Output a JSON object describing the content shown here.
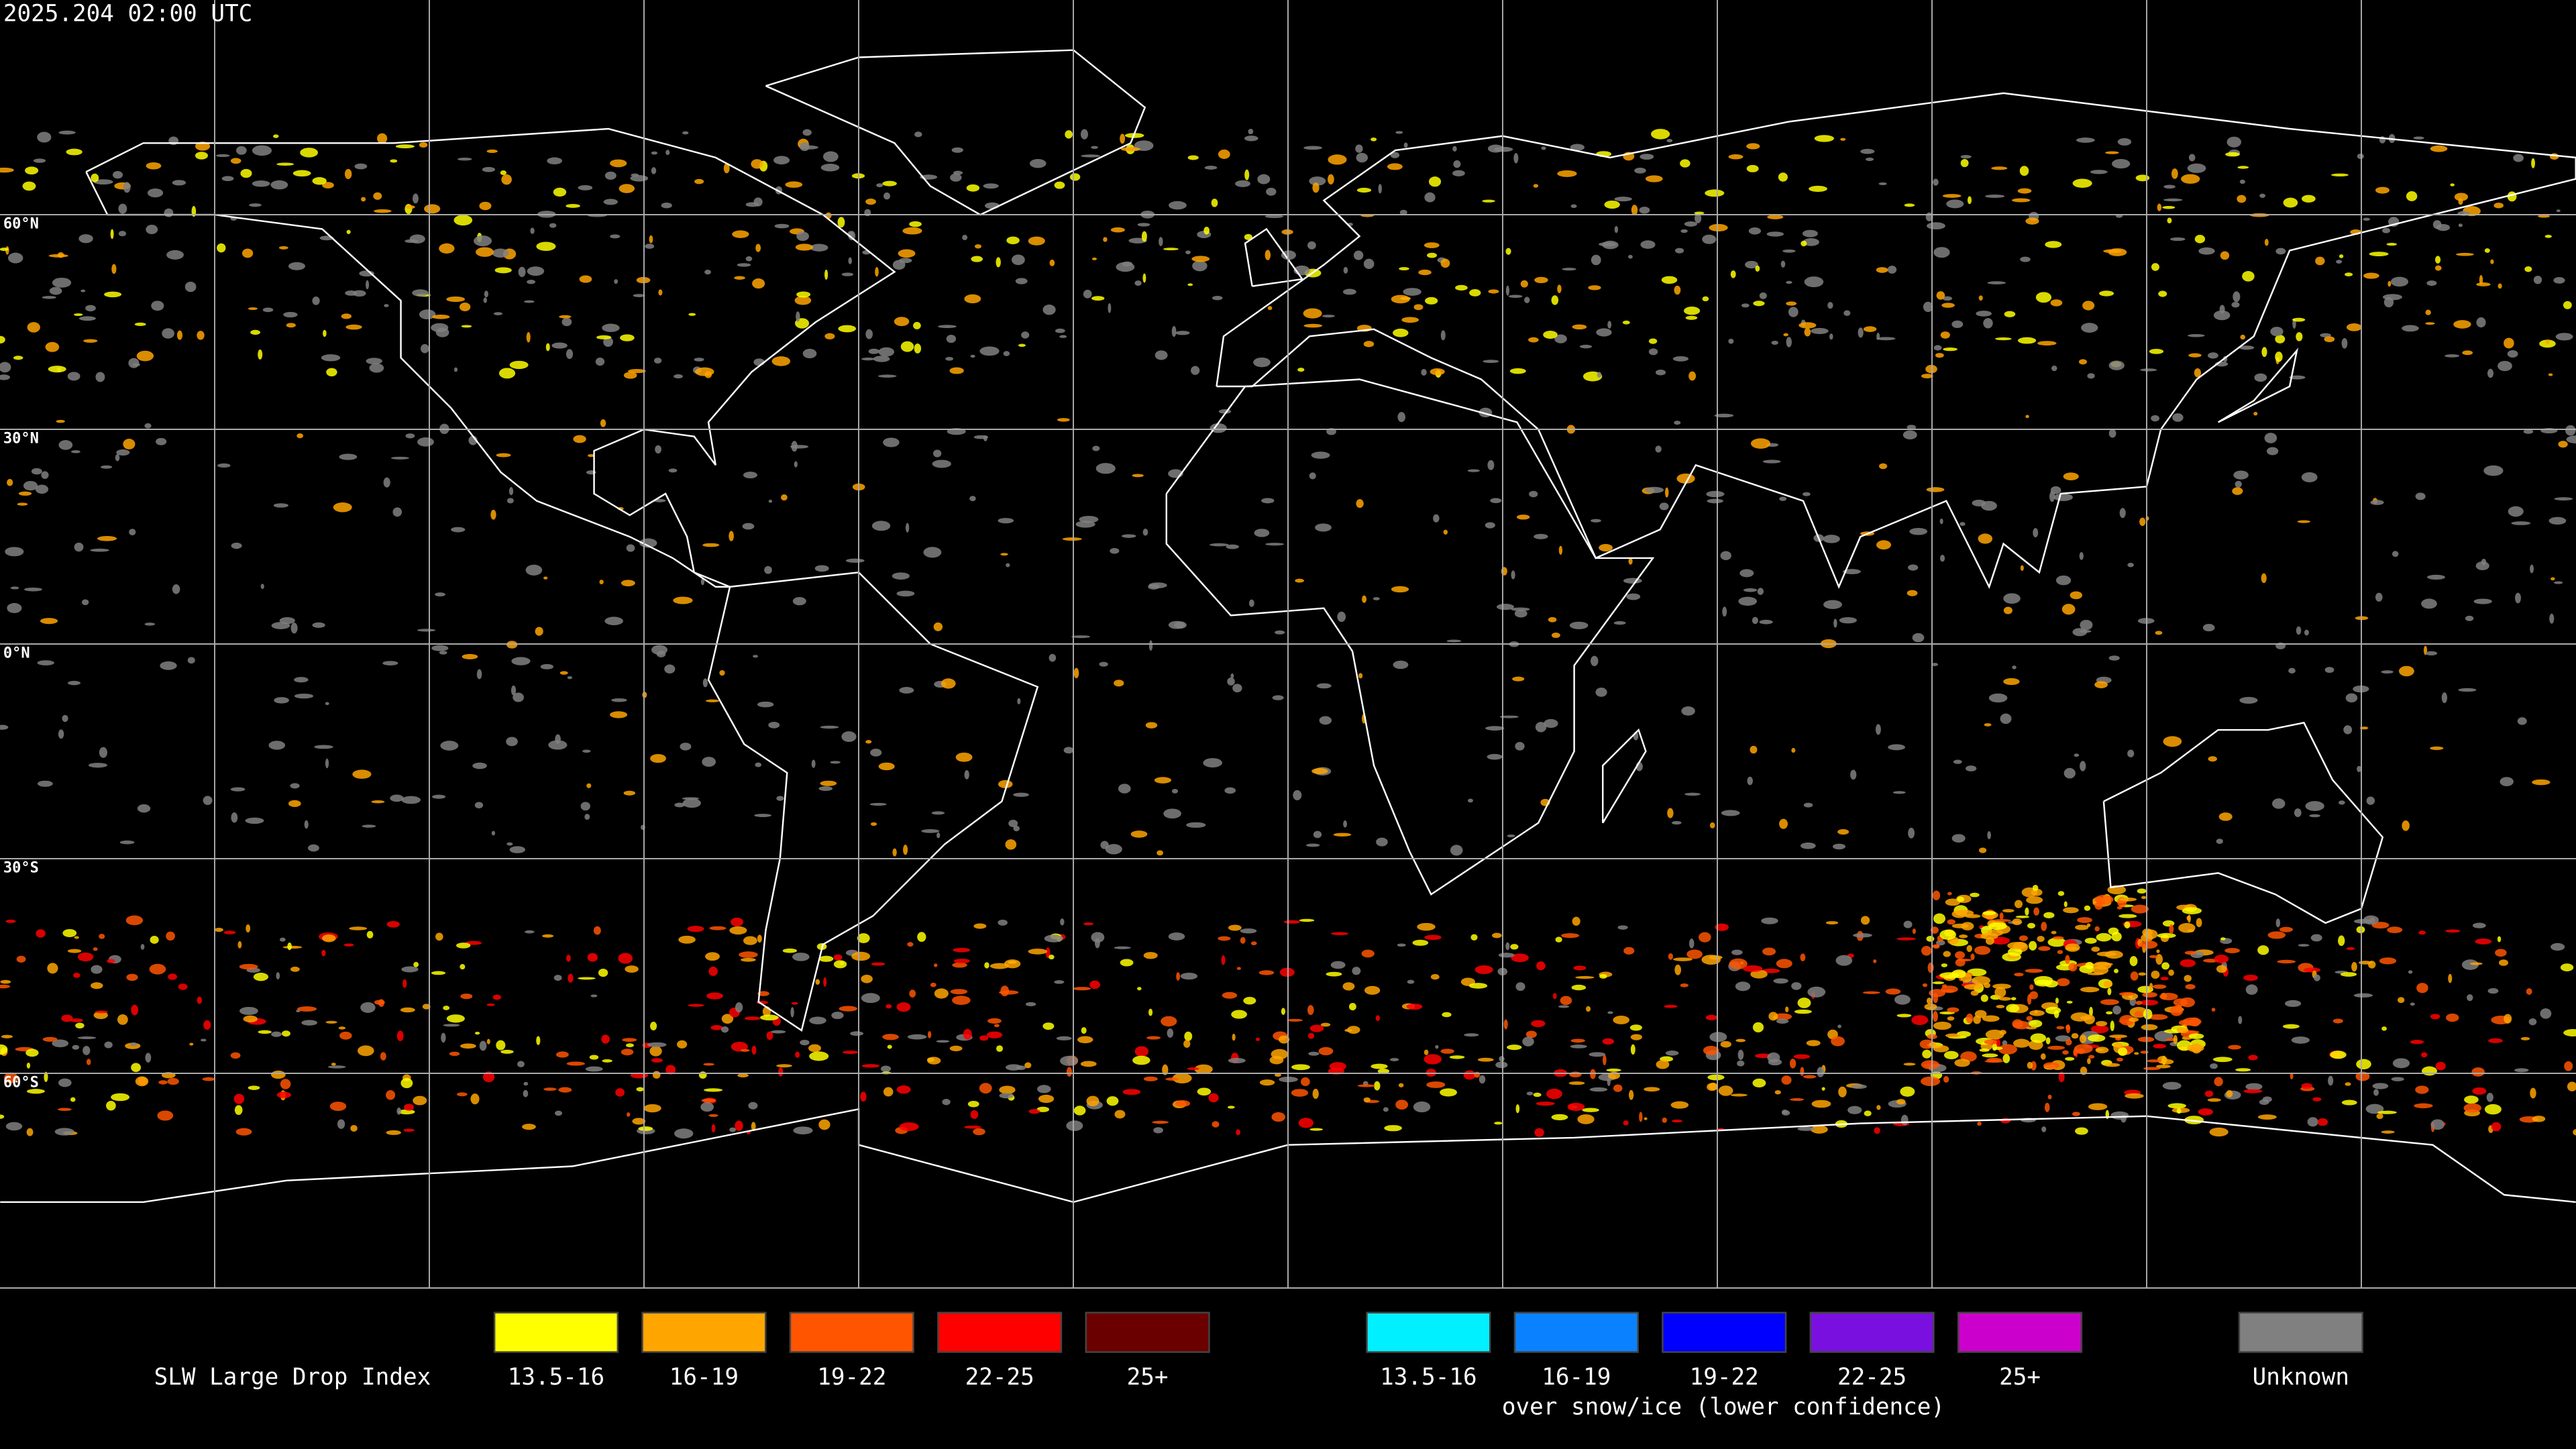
{
  "header": {
    "timestamp": "2025.204 02:00 UTC"
  },
  "map": {
    "latitude_labels": [
      "60°N",
      "30°N",
      "0°N",
      "30°S",
      "60°S"
    ]
  },
  "legend": {
    "title": "SLW Large Drop Index",
    "groups": [
      {
        "items": [
          {
            "label": "13.5-16",
            "color": "#ffff00"
          },
          {
            "label": "16-19",
            "color": "#ffa500"
          },
          {
            "label": "19-22",
            "color": "#ff5500"
          },
          {
            "label": "22-25",
            "color": "#ff0000"
          },
          {
            "label": "25+",
            "color": "#6b0000"
          }
        ]
      },
      {
        "note": "over snow/ice (lower confidence)",
        "items": [
          {
            "label": "13.5-16",
            "color": "#00f0ff"
          },
          {
            "label": "16-19",
            "color": "#0a82ff"
          },
          {
            "label": "19-22",
            "color": "#0000ff"
          },
          {
            "label": "22-25",
            "color": "#7a10e0"
          },
          {
            "label": "25+",
            "color": "#cc00cc"
          }
        ]
      }
    ],
    "unknown": {
      "label": "Unknown",
      "color": "#808080"
    }
  }
}
